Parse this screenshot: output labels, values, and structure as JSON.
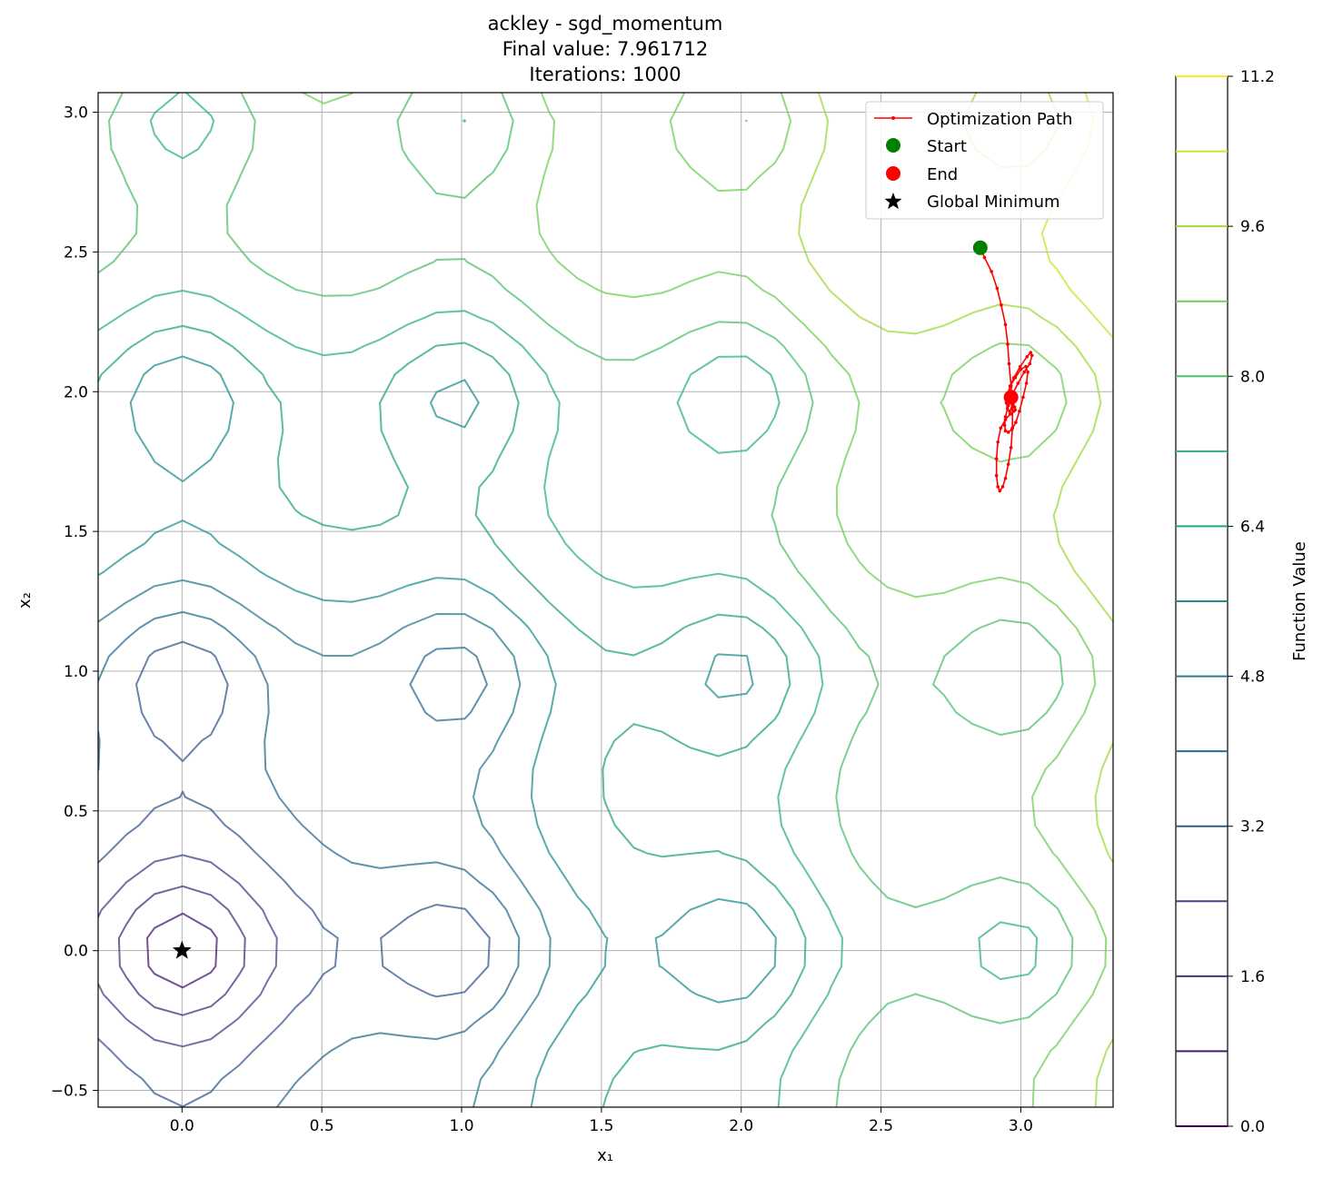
{
  "chart_data": {
    "type": "contour",
    "title_lines": [
      "ackley - sgd_momentum",
      "Final value: 7.961712",
      "Iterations: 1000"
    ],
    "xlabel": "x₁",
    "ylabel": "x₂",
    "xlim": [
      -0.3,
      3.33
    ],
    "ylim": [
      -0.56,
      3.07
    ],
    "x_ticks": [
      0.0,
      0.5,
      1.0,
      1.5,
      2.0,
      2.5,
      3.0
    ],
    "x_tick_labels": [
      "0.0",
      "0.5",
      "1.0",
      "1.5",
      "2.0",
      "2.5",
      "3.0"
    ],
    "y_ticks": [
      -0.5,
      0.0,
      0.5,
      1.0,
      1.5,
      2.0,
      2.5,
      3.0
    ],
    "y_tick_labels": [
      "−0.5",
      "0.0",
      "0.5",
      "1.0",
      "1.5",
      "2.0",
      "2.5",
      "3.0"
    ],
    "grid": true,
    "function": "ackley",
    "contour_levels": [
      0.8,
      1.6,
      2.4,
      3.2,
      4.0,
      4.8,
      5.6,
      6.4,
      7.2,
      8.0,
      8.8,
      9.6,
      10.4,
      11.2
    ],
    "colorbar": {
      "label": "Function Value",
      "range": [
        0.0,
        11.2
      ],
      "ticks": [
        0.0,
        1.6,
        3.2,
        4.8,
        6.4,
        8.0,
        9.6,
        11.2
      ],
      "tick_labels": [
        "0.0",
        "1.6",
        "3.2",
        "4.8",
        "6.4",
        "8.0",
        "9.6",
        "11.2"
      ]
    },
    "legend": {
      "placement": "top-right",
      "entries": [
        {
          "label": "Optimization Path",
          "kind": "line-dot",
          "color": "#ff0000"
        },
        {
          "label": "Start",
          "kind": "marker",
          "color": "#008000"
        },
        {
          "label": "End",
          "kind": "marker",
          "color": "#ff0000"
        },
        {
          "label": "Global Minimum",
          "kind": "star",
          "color": "#000000"
        }
      ]
    },
    "path": {
      "name": "Optimization Path",
      "color": "#ff0000",
      "x": [
        2.855,
        2.87,
        2.895,
        2.915,
        2.93,
        2.945,
        2.953,
        2.958,
        2.965,
        2.97,
        2.97,
        2.965,
        2.955,
        2.945,
        2.935,
        2.925,
        2.918,
        2.913,
        2.913,
        2.918,
        2.928,
        2.945,
        2.962,
        2.975,
        2.98,
        2.978,
        2.97,
        2.962,
        2.958,
        2.962,
        2.975,
        2.998,
        3.022,
        3.035,
        3.04,
        3.032,
        3.012,
        2.99,
        2.97,
        2.955,
        2.945,
        2.942,
        2.945,
        2.955,
        2.968,
        2.982,
        2.995,
        3.008,
        3.02,
        3.025,
        3.018,
        3.0,
        2.98,
        2.962,
        2.952,
        2.948,
        2.952,
        2.96,
        2.968,
        2.972,
        2.972,
        2.968,
        2.966,
        2.965
      ],
      "y": [
        2.515,
        2.48,
        2.43,
        2.37,
        2.31,
        2.24,
        2.17,
        2.1,
        2.02,
        1.95,
        1.87,
        1.8,
        1.74,
        1.69,
        1.66,
        1.645,
        1.66,
        1.7,
        1.76,
        1.82,
        1.87,
        1.9,
        1.92,
        1.93,
        1.935,
        1.945,
        1.96,
        1.98,
        2.0,
        2.02,
        2.05,
        2.09,
        2.125,
        2.14,
        2.13,
        2.1,
        2.07,
        2.03,
        1.99,
        1.95,
        1.91,
        1.88,
        1.86,
        1.855,
        1.865,
        1.89,
        1.93,
        1.98,
        2.03,
        2.07,
        2.09,
        2.08,
        2.05,
        2.02,
        1.99,
        1.96,
        1.94,
        1.93,
        1.94,
        1.955,
        1.97,
        1.978,
        1.98,
        1.98
      ]
    },
    "start": {
      "label": "Start",
      "x": 2.855,
      "y": 2.515,
      "color": "#008000"
    },
    "end": {
      "label": "End",
      "x": 2.965,
      "y": 1.98,
      "color": "#ff0000"
    },
    "global_minimum": {
      "label": "Global Minimum",
      "x": 0.0,
      "y": 0.0,
      "color": "#000000"
    }
  }
}
